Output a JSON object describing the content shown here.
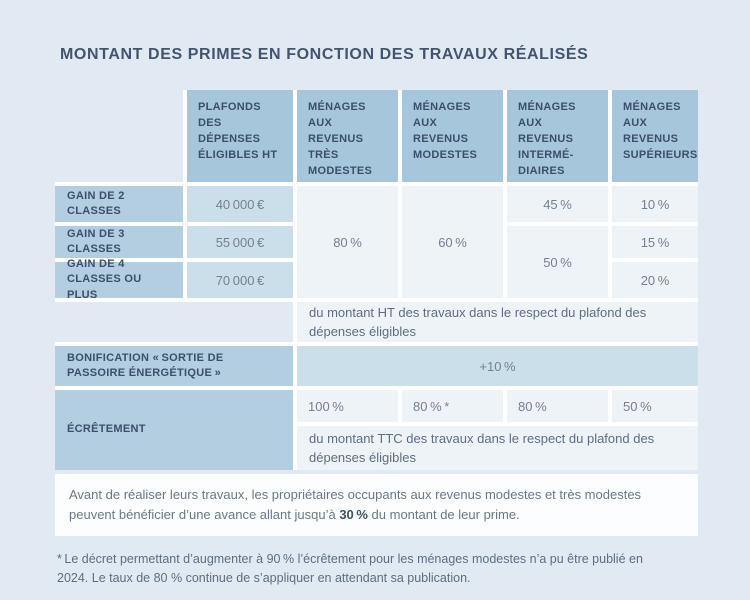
{
  "title": "MONTANT DES PRIMES EN FONCTION DES TRAVAUX RÉALISÉS",
  "colors": {
    "page_bg": "#e1eaf2",
    "header_cell": "#a6c7db",
    "label_cell": "#b2cee0",
    "accent_cell": "#cbdfeb",
    "value_cell": "#eef3f8",
    "title_text": "#44536e",
    "heading_text": "#3c4e6b",
    "value_text": "#75808f",
    "info_box_bg": "#fcfdfe"
  },
  "table": {
    "headers": {
      "plafonds": "PLAFONDS DES DÉPENSES ÉLIGIBLES HT",
      "tres_modestes": "MÉNAGES AUX REVENUS TRÈS MODESTES",
      "modestes": "MÉNAGES AUX REVENUS MODESTES",
      "intermediaires": "MÉNAGES AUX REVENUS INTERMÉ-DIAIRES",
      "superieurs": "MÉNAGES AUX REVENUS SUPÉRIEURS"
    },
    "gain2": {
      "label": "GAIN DE 2 CLASSES",
      "plafond": "40 000 €",
      "tres_modestes": "80 %",
      "modestes": "60 %",
      "intermediaires": "45 %",
      "superieurs": "10 %"
    },
    "gain3": {
      "label": "GAIN DE 3 CLASSES",
      "plafond": "55 000 €",
      "intermediaires": "50 %",
      "superieurs": "15 %"
    },
    "gain4": {
      "label": "GAIN DE 4 CLASSES OU PLUS",
      "plafond": "70 000 €",
      "superieurs": "20 %"
    },
    "ht_note": "du montant HT des travaux dans le respect du plafond des dépenses éligibles",
    "bonification": {
      "label": "BONIFICATION « SORTIE DE PASSOIRE ÉNERGÉTIQUE »",
      "value": "+10 %"
    },
    "ecretement": {
      "label": "ÉCRÊTEMENT",
      "tres_modestes": "100 %",
      "modestes": "80 % *",
      "intermediaires": "80 %",
      "superieurs": "50 %",
      "note": "du montant TTC des travaux dans le respect du plafond des dépenses éligibles"
    }
  },
  "infobox": {
    "text_before": "Avant de réaliser leurs travaux, les propriétaires occupants aux revenus modestes et très modestes peuvent bénéficier d’une avance allant jusqu’à ",
    "bold": "30 %",
    "text_after": " du montant de leur prime."
  },
  "footnote": "* Le décret permettant d’augmenter à 90 % l’écrêtement pour les ménages modestes n’a pu être publié en 2024. Le taux de 80 % continue de s’appliquer en attendant sa publication."
}
